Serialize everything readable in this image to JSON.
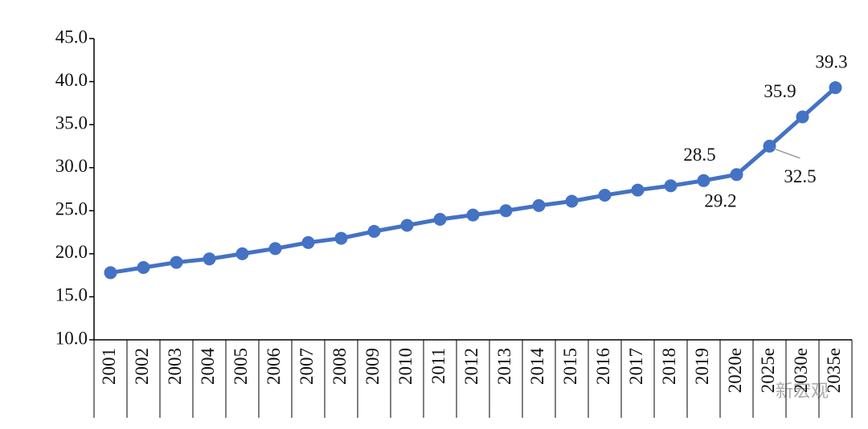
{
  "chart_data": {
    "type": "line",
    "categories": [
      "2001",
      "2002",
      "2003",
      "2004",
      "2005",
      "2006",
      "2007",
      "2008",
      "2009",
      "2010",
      "2011",
      "2012",
      "2013",
      "2014",
      "2015",
      "2016",
      "2017",
      "2018",
      "2019",
      "2020e",
      "2025e",
      "2030e",
      "2035e"
    ],
    "series": [
      {
        "color": "#4472c4",
        "values": [
          17.8,
          18.4,
          19.0,
          19.4,
          20.0,
          20.6,
          21.3,
          21.8,
          22.6,
          23.3,
          24.0,
          24.5,
          25.0,
          25.6,
          26.1,
          26.8,
          27.4,
          27.9,
          28.5,
          29.2,
          32.5,
          35.9,
          39.3
        ],
        "value_labels": [
          null,
          null,
          null,
          null,
          null,
          null,
          null,
          null,
          null,
          null,
          null,
          null,
          null,
          null,
          null,
          null,
          null,
          null,
          "28.5",
          "29.2",
          "32.5",
          "35.9",
          "39.3"
        ]
      }
    ],
    "ylim": [
      10,
      45
    ],
    "yticks": [
      {
        "value": 10,
        "label": "10.0"
      },
      {
        "value": 15,
        "label": "15.0"
      },
      {
        "value": 20,
        "label": "20.0"
      },
      {
        "value": 25,
        "label": "25.0"
      },
      {
        "value": 30,
        "label": "30.0"
      },
      {
        "value": 35,
        "label": "35.0"
      },
      {
        "value": 40,
        "label": "40.0"
      },
      {
        "value": 45,
        "label": "45.0"
      }
    ],
    "grid": false,
    "watermark": "新宏观"
  }
}
